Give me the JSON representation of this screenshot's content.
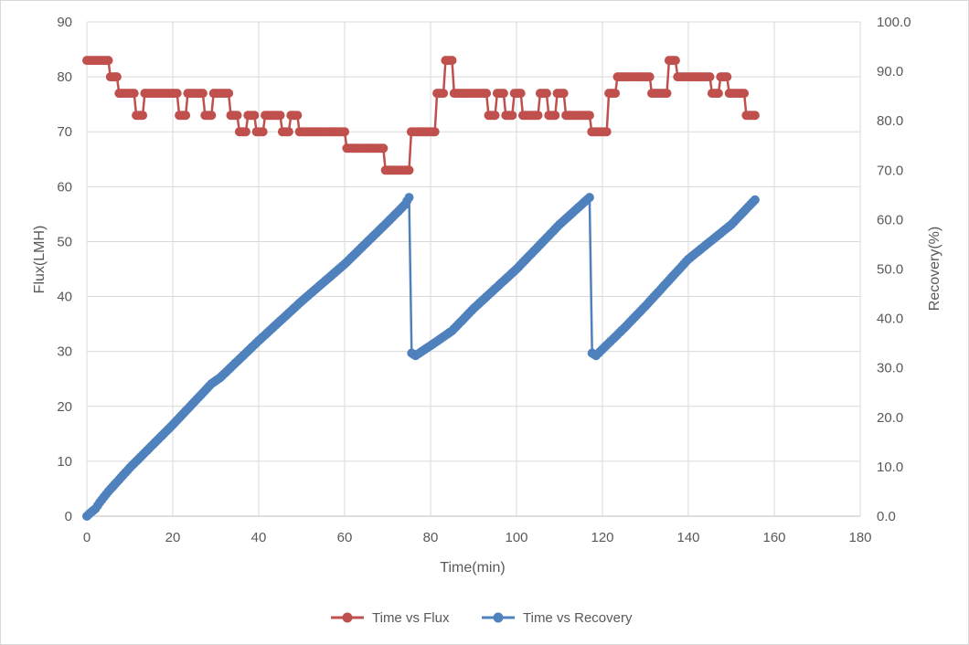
{
  "chart_data": {
    "type": "scatter",
    "xlabel": "Time(min)",
    "ylabel": "Flux(LMH)",
    "y2label": "Recovery(%)",
    "xlim": [
      0,
      180
    ],
    "ylim": [
      0,
      90
    ],
    "y2lim": [
      0,
      100
    ],
    "xticks": [
      0,
      20,
      40,
      60,
      80,
      100,
      120,
      140,
      160,
      180
    ],
    "xtick_labels": [
      "0",
      "20",
      "40",
      "60",
      "80",
      "100",
      "120",
      "140",
      "160",
      "180"
    ],
    "yticks": [
      0,
      10,
      20,
      30,
      40,
      50,
      60,
      70,
      80,
      90
    ],
    "ytick_labels": [
      "0",
      "10",
      "20",
      "30",
      "40",
      "50",
      "60",
      "70",
      "80",
      "90"
    ],
    "y2ticks": [
      0,
      10,
      20,
      30,
      40,
      50,
      60,
      70,
      80,
      90,
      100
    ],
    "y2tick_labels": [
      "0.0",
      "10.0",
      "20.0",
      "30.0",
      "40.0",
      "50.0",
      "60.0",
      "70.0",
      "80.0",
      "90.0",
      "100.0"
    ],
    "grid": true,
    "legend_position": "bottom",
    "series": [
      {
        "name": "Time vs Flux",
        "axis": "left",
        "color": "#C0504D",
        "points": [
          [
            0,
            83
          ],
          [
            5,
            83
          ],
          [
            5.5,
            80
          ],
          [
            7,
            80
          ],
          [
            7.5,
            77
          ],
          [
            11,
            77
          ],
          [
            11.5,
            73
          ],
          [
            13,
            73
          ],
          [
            13.5,
            77
          ],
          [
            21,
            77
          ],
          [
            21.5,
            73
          ],
          [
            23,
            73
          ],
          [
            23.5,
            77
          ],
          [
            27,
            77
          ],
          [
            27.5,
            73
          ],
          [
            29,
            73
          ],
          [
            29.5,
            77
          ],
          [
            33,
            77
          ],
          [
            33.5,
            73
          ],
          [
            35,
            73
          ],
          [
            35.5,
            70
          ],
          [
            37,
            70
          ],
          [
            37.5,
            73
          ],
          [
            39,
            73
          ],
          [
            39.5,
            70
          ],
          [
            41,
            70
          ],
          [
            41.5,
            73
          ],
          [
            45,
            73
          ],
          [
            45.5,
            70
          ],
          [
            47,
            70
          ],
          [
            47.5,
            73
          ],
          [
            49,
            73
          ],
          [
            49.5,
            70
          ],
          [
            60,
            70
          ],
          [
            60.5,
            67
          ],
          [
            69,
            67
          ],
          [
            69.5,
            63
          ],
          [
            75,
            63
          ],
          [
            75.5,
            70
          ],
          [
            81,
            70
          ],
          [
            81.5,
            77
          ],
          [
            83,
            77
          ],
          [
            83.5,
            83
          ],
          [
            85,
            83
          ],
          [
            85.5,
            77
          ],
          [
            93,
            77
          ],
          [
            93.5,
            73
          ],
          [
            95,
            73
          ],
          [
            95.5,
            77
          ],
          [
            97,
            77
          ],
          [
            97.5,
            73
          ],
          [
            99,
            73
          ],
          [
            99.5,
            77
          ],
          [
            101,
            77
          ],
          [
            101.5,
            73
          ],
          [
            105,
            73
          ],
          [
            105.5,
            77
          ],
          [
            107,
            77
          ],
          [
            107.5,
            73
          ],
          [
            109,
            73
          ],
          [
            109.5,
            77
          ],
          [
            111,
            77
          ],
          [
            111.5,
            73
          ],
          [
            117,
            73
          ],
          [
            117.5,
            70
          ],
          [
            121,
            70
          ],
          [
            121.5,
            77
          ],
          [
            123,
            77
          ],
          [
            123.5,
            80
          ],
          [
            131,
            80
          ],
          [
            131.5,
            77
          ],
          [
            135,
            77
          ],
          [
            135.5,
            83
          ],
          [
            137,
            83
          ],
          [
            137.5,
            80
          ],
          [
            145,
            80
          ],
          [
            145.5,
            77
          ],
          [
            147,
            77
          ],
          [
            147.5,
            80
          ],
          [
            149,
            80
          ],
          [
            149.5,
            77
          ],
          [
            153,
            77
          ],
          [
            153.5,
            73
          ],
          [
            155.5,
            73
          ]
        ]
      },
      {
        "name": "Time vs Recovery",
        "axis": "right",
        "color": "#4F81BD",
        "points": [
          [
            0,
            0
          ],
          [
            1,
            0.8
          ],
          [
            2,
            1.5
          ],
          [
            3,
            2.8
          ],
          [
            5,
            5.0
          ],
          [
            10,
            9.8
          ],
          [
            20,
            18.5
          ],
          [
            29,
            26.8
          ],
          [
            31,
            28.0
          ],
          [
            40,
            35.5
          ],
          [
            50,
            43.5
          ],
          [
            60,
            51.0
          ],
          [
            70,
            59.5
          ],
          [
            74,
            63.0
          ],
          [
            75,
            64.5
          ],
          [
            75.6,
            33.0
          ],
          [
            76.5,
            32.5
          ],
          [
            80,
            34.5
          ],
          [
            85,
            37.5
          ],
          [
            90,
            42.0
          ],
          [
            100,
            50.0
          ],
          [
            110,
            59.0
          ],
          [
            117,
            64.5
          ],
          [
            117.6,
            33.0
          ],
          [
            118.5,
            32.5
          ],
          [
            125,
            38.0
          ],
          [
            130,
            42.5
          ],
          [
            140,
            52.0
          ],
          [
            150,
            59.0
          ],
          [
            155.5,
            64.0
          ]
        ]
      }
    ]
  }
}
